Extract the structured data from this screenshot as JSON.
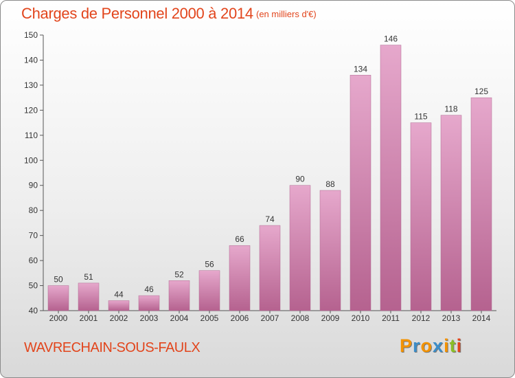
{
  "header": {
    "title": "Charges de Personnel 2000 à 2014",
    "subtitle": "(en milliers d'€)"
  },
  "footer": {
    "commune": "WAVRECHAIN-SOUS-FAULX",
    "logo_letters": [
      {
        "char": "P",
        "color": "#f39200"
      },
      {
        "char": "r",
        "color": "#3c8dc8"
      },
      {
        "char": "o",
        "color": "#f39200"
      },
      {
        "char": "x",
        "color": "#3c8dc8"
      },
      {
        "char": "i",
        "color": "#f39200"
      },
      {
        "char": "t",
        "color": "#8cbf26"
      },
      {
        "char": "i",
        "color": "#e2451c"
      }
    ]
  },
  "colors": {
    "bar_light": "#e6a8cc",
    "bar_dark": "#b5628f",
    "title": "#e2451c"
  },
  "chart_data": {
    "type": "bar",
    "categories": [
      "2000",
      "2001",
      "2002",
      "2003",
      "2004",
      "2005",
      "2006",
      "2007",
      "2008",
      "2009",
      "2010",
      "2011",
      "2012",
      "2013",
      "2014"
    ],
    "values": [
      50,
      51,
      44,
      46,
      52,
      56,
      66,
      74,
      90,
      88,
      134,
      146,
      115,
      118,
      125
    ],
    "title": "Charges de Personnel 2000 à 2014",
    "ylim": [
      40,
      150
    ],
    "yticks": [
      40,
      50,
      60,
      70,
      80,
      90,
      100,
      110,
      120,
      130,
      140,
      150
    ],
    "grid": false,
    "legend": "none"
  }
}
